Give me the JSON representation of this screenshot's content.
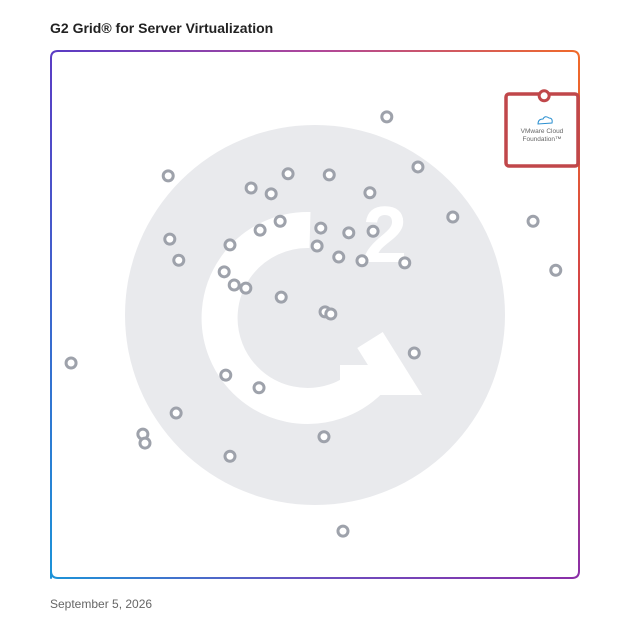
{
  "chart_data": {
    "type": "scatter",
    "title": "G2 Grid® for Server Virtualization",
    "date": "September 5, 2026",
    "xlim": [
      0,
      100
    ],
    "ylim": [
      0,
      100
    ],
    "x": [
      63.6,
      22.2,
      69.5,
      44.9,
      52.7,
      37.9,
      41.7,
      60.4,
      76.1,
      91.3,
      43.4,
      39.6,
      51.1,
      56.4,
      61.0,
      22.5,
      33.9,
      50.4,
      24.2,
      54.5,
      58.9,
      67.0,
      95.6,
      32.8,
      34.7,
      36.9,
      43.6,
      51.9,
      53.0,
      3.8,
      68.8,
      33.1,
      39.4,
      23.7,
      17.4,
      17.8,
      51.7,
      33.9,
      55.3
    ],
    "y": [
      87.5,
      76.3,
      78.0,
      76.7,
      76.5,
      74.0,
      72.9,
      73.1,
      68.5,
      67.7,
      67.7,
      66.0,
      66.4,
      65.5,
      65.8,
      64.3,
      63.2,
      63.0,
      60.3,
      60.9,
      60.2,
      59.8,
      58.4,
      58.1,
      55.6,
      55.0,
      53.3,
      50.5,
      50.1,
      40.8,
      42.7,
      38.5,
      36.1,
      31.3,
      27.3,
      25.6,
      26.8,
      23.1,
      8.9
    ],
    "color": "#9ea2ab",
    "highlight": {
      "label": "VMware Cloud Foundation™",
      "x": 93.4,
      "y": 91.5,
      "color": "#c0474a"
    }
  }
}
